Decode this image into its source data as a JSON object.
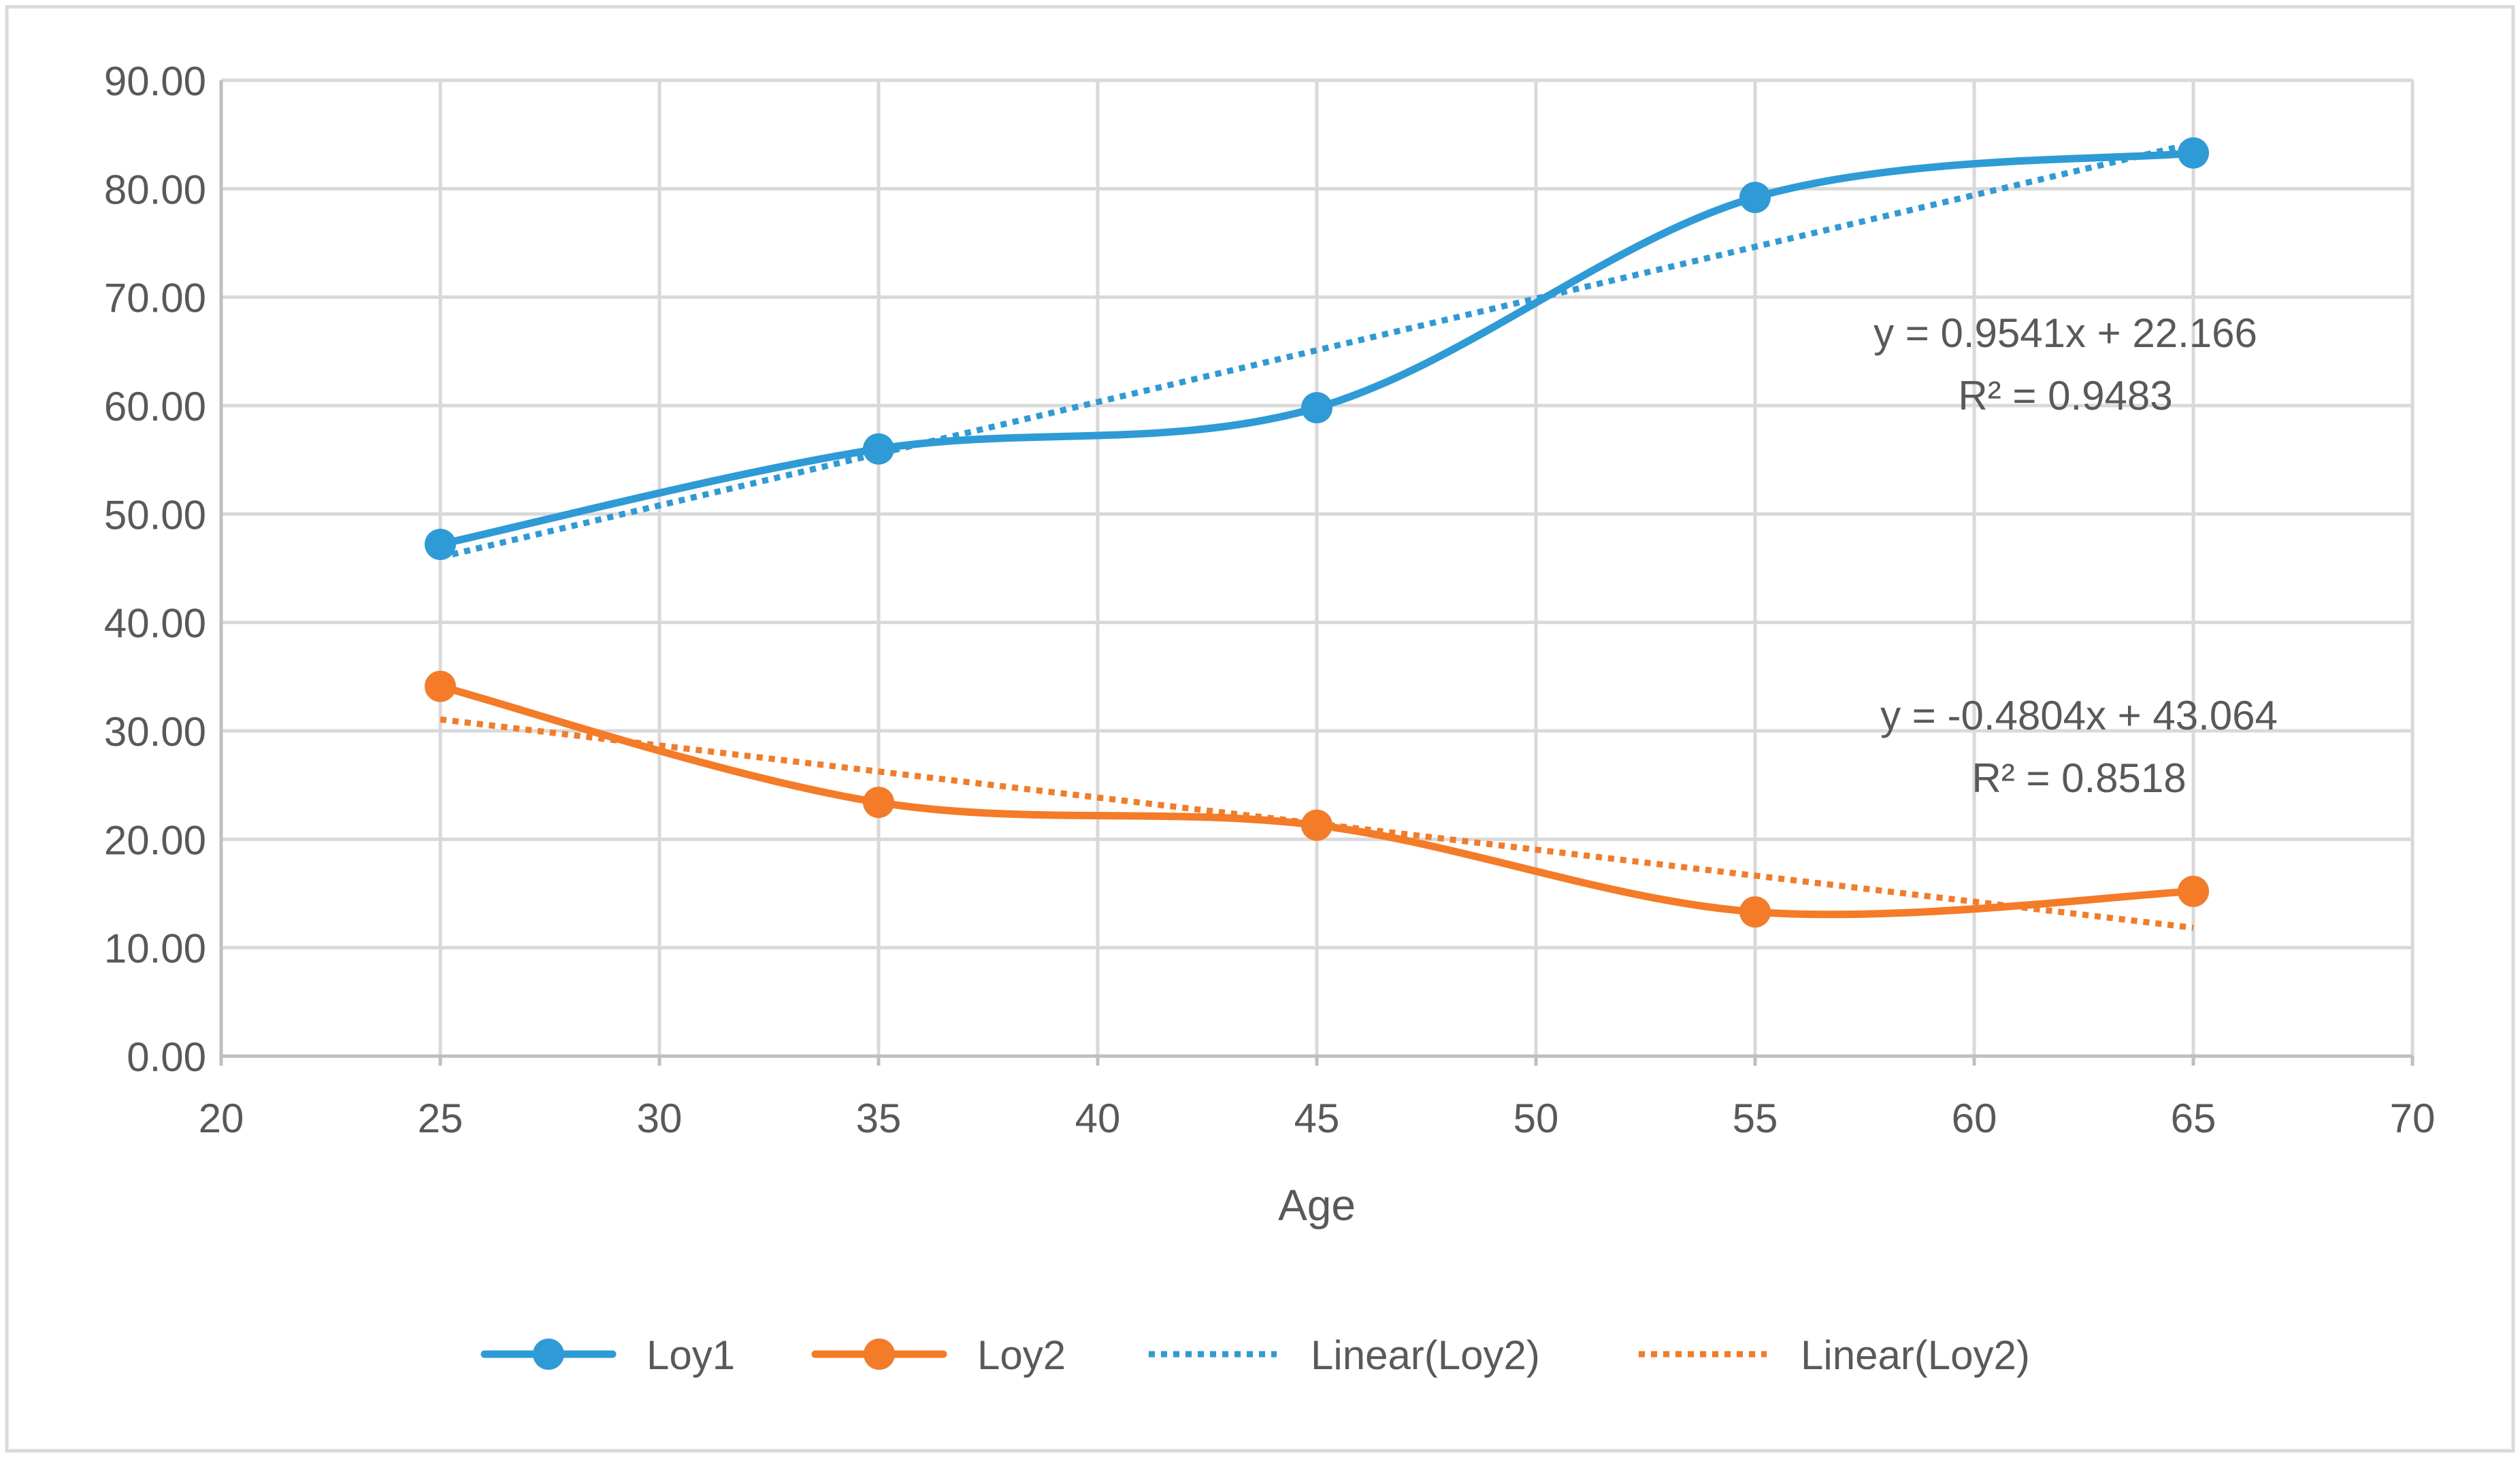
{
  "chart_data": {
    "type": "line",
    "title": "",
    "xlabel": "Age",
    "ylabel": "",
    "xlim": [
      20,
      70
    ],
    "ylim": [
      0,
      90
    ],
    "x_ticks": [
      20,
      25,
      30,
      35,
      40,
      45,
      50,
      55,
      60,
      65,
      70
    ],
    "y_ticks": [
      0,
      10,
      20,
      30,
      40,
      50,
      60,
      70,
      80,
      90
    ],
    "x_tick_labels": [
      "20",
      "25",
      "30",
      "35",
      "40",
      "45",
      "50",
      "55",
      "60",
      "65",
      "70"
    ],
    "y_tick_labels": [
      "0.00",
      "10.00",
      "20.00",
      "30.00",
      "40.00",
      "50.00",
      "60.00",
      "70.00",
      "80.00",
      "90.00"
    ],
    "grid": true,
    "legend_position": "bottom",
    "series": [
      {
        "name": "Loy1",
        "color": "#2E9BD6",
        "smooth": true,
        "markers": true,
        "x": [
          25,
          35,
          45,
          55,
          65
        ],
        "y": [
          47.2,
          56.0,
          59.8,
          79.2,
          83.3
        ]
      },
      {
        "name": "Loy2",
        "color": "#F47C28",
        "smooth": true,
        "markers": true,
        "x": [
          25,
          35,
          45,
          55,
          65
        ],
        "y": [
          34.1,
          23.4,
          21.3,
          13.3,
          15.2
        ]
      }
    ],
    "trendlines": [
      {
        "name": "Linear(Loy2)",
        "of_series": "Loy1",
        "color": "#2E9BD6",
        "style": "dotted",
        "slope": 0.9541,
        "intercept": 22.166,
        "x_range": [
          25,
          65
        ],
        "equation": "y = 0.9541x + 22.166",
        "r_squared": "R² = 0.9483"
      },
      {
        "name": "Linear(Loy2)",
        "of_series": "Loy2",
        "color": "#F47C28",
        "style": "dotted",
        "slope": -0.4804,
        "intercept": 43.064,
        "x_range": [
          25,
          65
        ],
        "equation": "y = -0.4804x + 43.064",
        "r_squared": "R² = 0.8518"
      }
    ],
    "legend": [
      {
        "label": "Loy1",
        "color": "#2E9BD6",
        "style": "line-marker"
      },
      {
        "label": "Loy2",
        "color": "#F47C28",
        "style": "line-marker"
      },
      {
        "label": "Linear(Loy2)",
        "color": "#2E9BD6",
        "style": "dotted"
      },
      {
        "label": "Linear(Loy2)",
        "color": "#F47C28",
        "style": "dotted"
      }
    ],
    "colors": {
      "grid": "#D9D9D9",
      "axis": "#BFBFBF",
      "text": "#595959",
      "border": "#D9D9D9"
    }
  }
}
